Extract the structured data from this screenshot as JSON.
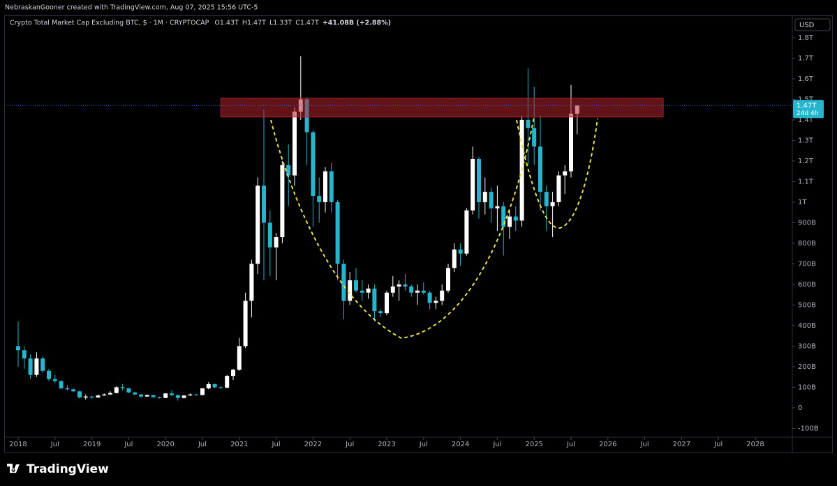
{
  "header": {
    "credit": "NebraskanGooner created with TradingView.com, Aug 07, 2025 15:56 UTC-5",
    "logo": "TradingView",
    "currency_button": "USD"
  },
  "chart_data": {
    "type": "candlestick",
    "title": "Crypto Total Market Cap Excluding BTC, $ · 1M · CRYPTOCAP",
    "legend": [
      {
        "key": "O",
        "label": "1.43T"
      },
      {
        "key": "H",
        "label": "1.47T"
      },
      {
        "key": "L",
        "label": "1.33T"
      },
      {
        "key": "C",
        "label": "1.47T"
      }
    ],
    "change_label": "+41.08B (+2.88%)",
    "price_label": "1.47T",
    "countdown": "24d 4h",
    "up_color": "#ffffff",
    "down_color": "#26b5cc",
    "zone_color": "#b2222c",
    "resistance_zone": {
      "x": [
        "2020-10",
        "2026-10"
      ],
      "y": [
        1414,
        1505
      ]
    },
    "x": [
      "2018-01",
      "2018-02",
      "2018-03",
      "2018-04",
      "2018-05",
      "2018-06",
      "2018-07",
      "2018-08",
      "2018-09",
      "2018-10",
      "2018-11",
      "2018-12",
      "2019-01",
      "2019-02",
      "2019-03",
      "2019-04",
      "2019-05",
      "2019-06",
      "2019-07",
      "2019-08",
      "2019-09",
      "2019-10",
      "2019-11",
      "2019-12",
      "2020-01",
      "2020-02",
      "2020-03",
      "2020-04",
      "2020-05",
      "2020-06",
      "2020-07",
      "2020-08",
      "2020-09",
      "2020-10",
      "2020-11",
      "2020-12",
      "2021-01",
      "2021-02",
      "2021-03",
      "2021-04",
      "2021-05",
      "2021-06",
      "2021-07",
      "2021-08",
      "2021-09",
      "2021-10",
      "2021-11",
      "2021-12",
      "2022-01",
      "2022-02",
      "2022-03",
      "2022-04",
      "2022-05",
      "2022-06",
      "2022-07",
      "2022-08",
      "2022-09",
      "2022-10",
      "2022-11",
      "2022-12",
      "2023-01",
      "2023-02",
      "2023-03",
      "2023-04",
      "2023-05",
      "2023-06",
      "2023-07",
      "2023-08",
      "2023-09",
      "2023-10",
      "2023-11",
      "2023-12",
      "2024-01",
      "2024-02",
      "2024-03",
      "2024-04",
      "2024-05",
      "2024-06",
      "2024-07",
      "2024-08",
      "2024-09",
      "2024-10",
      "2024-11",
      "2024-12",
      "2025-01",
      "2025-02",
      "2025-03",
      "2025-04",
      "2025-05",
      "2025-06",
      "2025-07",
      "2025-08"
    ],
    "open": [
      300,
      280,
      240,
      160,
      240,
      180,
      140,
      130,
      95,
      90,
      80,
      50,
      55,
      50,
      60,
      65,
      72,
      100,
      95,
      75,
      65,
      55,
      62,
      52,
      48,
      70,
      62,
      48,
      60,
      65,
      62,
      95,
      115,
      100,
      98,
      155,
      185,
      300,
      520,
      700,
      1080,
      900,
      780,
      830,
      1180,
      1130,
      1440,
      1500,
      1340,
      1030,
      1000,
      1150,
      1000,
      700,
      520,
      620,
      570,
      560,
      580,
      470,
      460,
      560,
      590,
      600,
      590,
      560,
      570,
      560,
      510,
      520,
      570,
      680,
      770,
      750,
      960,
      1210,
      1000,
      1050,
      970,
      980,
      880,
      930,
      910,
      1400,
      1360,
      1270,
      1050,
      980,
      1000,
      1130,
      1150,
      1430
    ],
    "high": [
      420,
      300,
      260,
      270,
      250,
      190,
      160,
      135,
      110,
      95,
      85,
      65,
      58,
      65,
      70,
      80,
      105,
      115,
      97,
      78,
      68,
      65,
      63,
      54,
      72,
      85,
      64,
      62,
      70,
      68,
      95,
      125,
      118,
      105,
      160,
      190,
      340,
      560,
      720,
      1120,
      1450,
      960,
      850,
      1200,
      1280,
      1460,
      1710,
      1510,
      1350,
      1120,
      1170,
      1190,
      1010,
      720,
      660,
      680,
      620,
      600,
      600,
      480,
      570,
      640,
      620,
      650,
      600,
      600,
      610,
      570,
      540,
      600,
      700,
      800,
      800,
      970,
      1270,
      1220,
      1120,
      1070,
      1080,
      1000,
      960,
      980,
      1420,
      1650,
      1560,
      1420,
      1080,
      1050,
      1150,
      1180,
      1570,
      1470
    ],
    "low": [
      200,
      190,
      140,
      150,
      170,
      130,
      120,
      90,
      85,
      78,
      45,
      40,
      45,
      48,
      58,
      62,
      70,
      85,
      70,
      60,
      48,
      52,
      48,
      45,
      47,
      58,
      35,
      45,
      58,
      60,
      60,
      90,
      95,
      92,
      95,
      135,
      180,
      290,
      440,
      650,
      620,
      640,
      620,
      800,
      980,
      1080,
      1400,
      1180,
      880,
      900,
      950,
      950,
      620,
      430,
      500,
      560,
      520,
      530,
      420,
      440,
      450,
      540,
      520,
      570,
      540,
      500,
      550,
      480,
      480,
      500,
      560,
      660,
      690,
      740,
      940,
      920,
      940,
      900,
      860,
      740,
      820,
      860,
      880,
      1180,
      1180,
      960,
      860,
      830,
      980,
      1040,
      1120,
      1330
    ],
    "close": [
      280,
      240,
      160,
      240,
      180,
      140,
      130,
      95,
      90,
      80,
      50,
      55,
      50,
      60,
      65,
      72,
      100,
      95,
      75,
      65,
      55,
      62,
      52,
      48,
      70,
      62,
      48,
      60,
      65,
      62,
      95,
      115,
      100,
      98,
      155,
      185,
      300,
      520,
      700,
      1080,
      900,
      780,
      830,
      1180,
      1130,
      1440,
      1500,
      1340,
      1030,
      1000,
      1150,
      1000,
      700,
      520,
      620,
      570,
      560,
      580,
      470,
      460,
      560,
      590,
      600,
      590,
      560,
      570,
      560,
      510,
      520,
      570,
      680,
      770,
      750,
      960,
      1210,
      1000,
      1050,
      970,
      980,
      880,
      930,
      910,
      1400,
      1360,
      1270,
      1050,
      980,
      1000,
      1130,
      1150,
      1430,
      1470
    ],
    "ylim": [
      -136,
      1898
    ],
    "yticks": [
      {
        "value": -100,
        "label": "-100B"
      },
      0,
      {
        "value": 100,
        "label": "100B"
      },
      {
        "value": 200,
        "label": "200B"
      },
      {
        "value": 300,
        "label": "300B"
      },
      {
        "value": 400,
        "label": "400B"
      },
      {
        "value": 500,
        "label": "500B"
      },
      {
        "value": 600,
        "label": "600B"
      },
      {
        "value": 700,
        "label": "700B"
      },
      {
        "value": 800,
        "label": "800B"
      },
      {
        "value": 900,
        "label": "900B"
      },
      {
        "value": 1000,
        "label": "1T"
      },
      {
        "value": 1100,
        "label": "1.1T"
      },
      {
        "value": 1200,
        "label": "1.2T"
      },
      {
        "value": 1300,
        "label": "1.3T"
      },
      {
        "value": 1400,
        "label": "1.4T"
      },
      {
        "value": 1500,
        "label": "1.5T"
      },
      {
        "value": 1600,
        "label": "1.6T"
      },
      {
        "value": 1700,
        "label": "1.7T"
      },
      {
        "value": 1800,
        "label": "1.8T"
      }
    ],
    "xticks": [
      {
        "value": "2018-01",
        "label": "2018"
      },
      {
        "value": "2018-07",
        "label": "Jul"
      },
      {
        "value": "2019-01",
        "label": "2019"
      },
      {
        "value": "2019-07",
        "label": "Jul"
      },
      {
        "value": "2020-01",
        "label": "2020"
      },
      {
        "value": "2020-07",
        "label": "Jul"
      },
      {
        "value": "2021-01",
        "label": "2021"
      },
      {
        "value": "2021-07",
        "label": "Jul"
      },
      {
        "value": "2022-01",
        "label": "2022"
      },
      {
        "value": "2022-07",
        "label": "Jul"
      },
      {
        "value": "2023-01",
        "label": "2023"
      },
      {
        "value": "2023-07",
        "label": "Jul"
      },
      {
        "value": "2024-01",
        "label": "2024"
      },
      {
        "value": "2024-07",
        "label": "Jul"
      },
      {
        "value": "2025-01",
        "label": "2025"
      },
      {
        "value": "2025-07",
        "label": "Jul"
      },
      {
        "value": "2026-01",
        "label": "2026"
      },
      {
        "value": "2026-07",
        "label": "Jul"
      },
      {
        "value": "2027-01",
        "label": "2027"
      },
      {
        "value": "2027-07",
        "label": "Jul"
      },
      {
        "value": "2028-01",
        "label": "2028"
      }
    ],
    "grid": false
  }
}
